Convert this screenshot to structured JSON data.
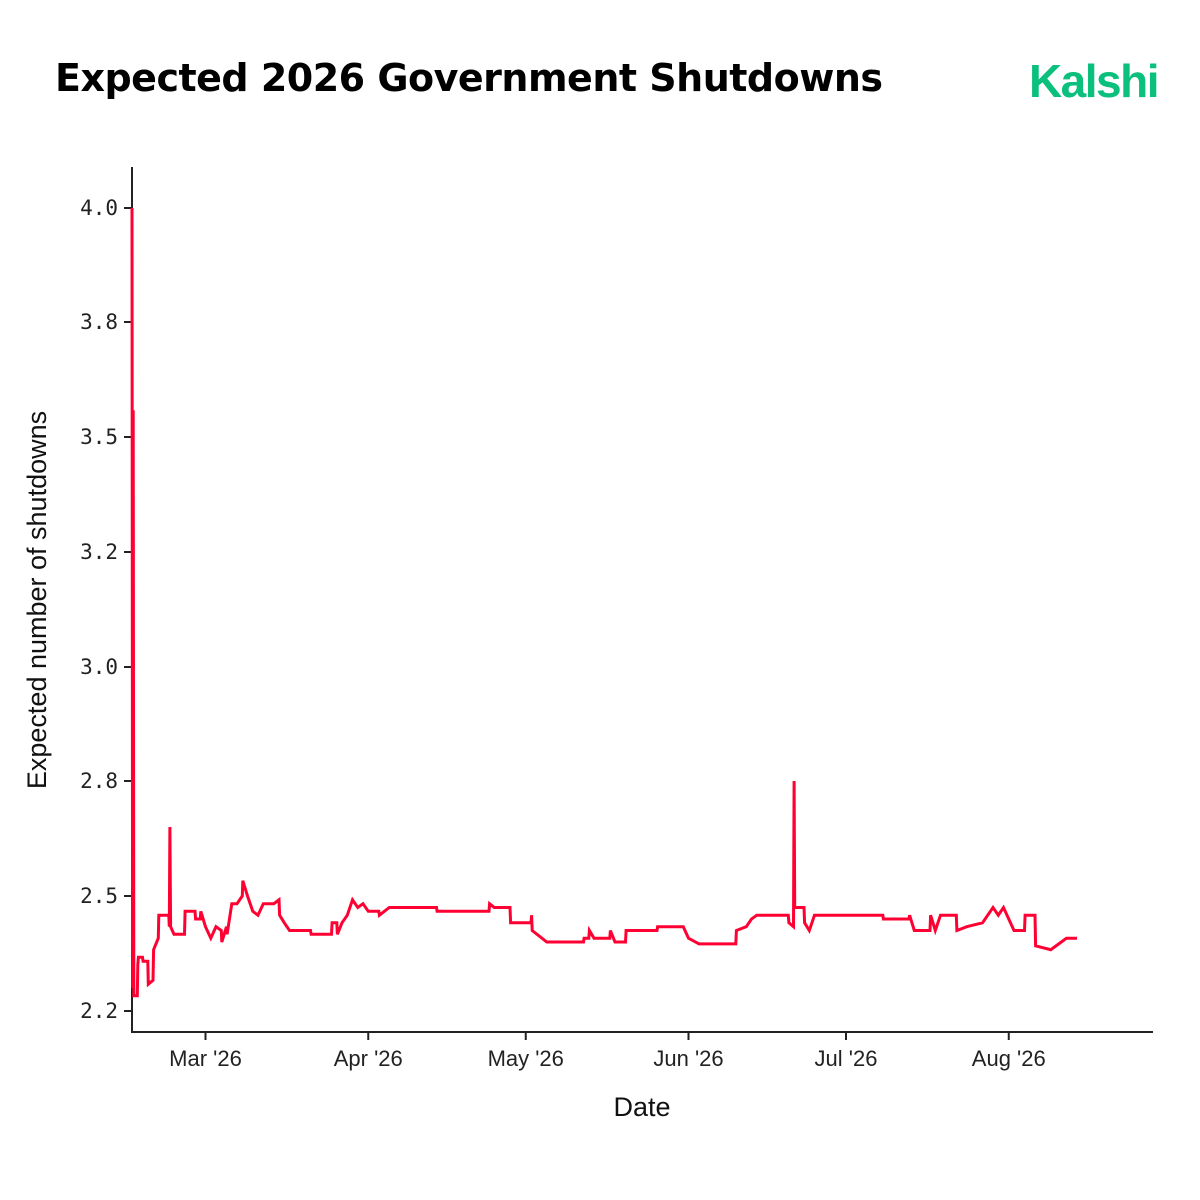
{
  "header": {
    "title": "Expected 2026 Government Shutdowns",
    "brand": "Kalshi",
    "brand_color": "#0bbf7d"
  },
  "chart_data": {
    "type": "line",
    "title": "Expected 2026 Government Shutdowns",
    "xlabel": "Date",
    "ylabel": "Expected number of shutdowns",
    "yticks": [
      "2.2",
      "2.5",
      "2.8",
      "3.0",
      "3.2",
      "3.5",
      "3.8",
      "4.0"
    ],
    "ylim": [
      2.13,
      4.07
    ],
    "xlim": [
      "2026-02-15",
      "2026-08-18"
    ],
    "xticks": [
      {
        "date": "2026-03-01",
        "label": "Mar '26"
      },
      {
        "date": "2026-04-01",
        "label": "Apr '26"
      },
      {
        "date": "2026-05-01",
        "label": "May '26"
      },
      {
        "date": "2026-06-01",
        "label": "Jun '26"
      },
      {
        "date": "2026-07-01",
        "label": "Jul '26"
      },
      {
        "date": "2026-08-01",
        "label": "Aug '26"
      }
    ],
    "grid": false,
    "legend": "none",
    "line_color": "#ff0033",
    "series": [
      {
        "points": [
          [
            "2026-02-15",
            4.0
          ],
          [
            "2026-02-15",
            2.26
          ],
          [
            "2026-02-15",
            3.57
          ],
          [
            "2026-02-15",
            2.24
          ],
          [
            "2026-02-16",
            2.24
          ],
          [
            "2026-02-16",
            2.32
          ],
          [
            "2026-02-16",
            2.34
          ],
          [
            "2026-02-17",
            2.34
          ],
          [
            "2026-02-17",
            2.33
          ],
          [
            "2026-02-18",
            2.33
          ],
          [
            "2026-02-18",
            2.27
          ],
          [
            "2026-02-19",
            2.28
          ],
          [
            "2026-02-19",
            2.36
          ],
          [
            "2026-02-20",
            2.39
          ],
          [
            "2026-02-20",
            2.45
          ],
          [
            "2026-02-22",
            2.45
          ],
          [
            "2026-02-22",
            2.42
          ],
          [
            "2026-02-22",
            2.68
          ],
          [
            "2026-02-22",
            2.42
          ],
          [
            "2026-02-23",
            2.4
          ],
          [
            "2026-02-25",
            2.4
          ],
          [
            "2026-02-25",
            2.46
          ],
          [
            "2026-02-27",
            2.46
          ],
          [
            "2026-02-27",
            2.44
          ],
          [
            "2026-02-28",
            2.44
          ],
          [
            "2026-02-28",
            2.46
          ],
          [
            "2026-03-01",
            2.42
          ],
          [
            "2026-03-02",
            2.39
          ],
          [
            "2026-03-03",
            2.42
          ],
          [
            "2026-03-04",
            2.41
          ],
          [
            "2026-03-04",
            2.38
          ],
          [
            "2026-03-05",
            2.42
          ],
          [
            "2026-03-05",
            2.4
          ],
          [
            "2026-03-06",
            2.48
          ],
          [
            "2026-03-07",
            2.48
          ],
          [
            "2026-03-08",
            2.5
          ],
          [
            "2026-03-08",
            2.54
          ],
          [
            "2026-03-09",
            2.5
          ],
          [
            "2026-03-10",
            2.46
          ],
          [
            "2026-03-11",
            2.45
          ],
          [
            "2026-03-12",
            2.48
          ],
          [
            "2026-03-14",
            2.48
          ],
          [
            "2026-03-15",
            2.49
          ],
          [
            "2026-03-15",
            2.45
          ],
          [
            "2026-03-16",
            2.43
          ],
          [
            "2026-03-17",
            2.41
          ],
          [
            "2026-03-21",
            2.41
          ],
          [
            "2026-03-21",
            2.4
          ],
          [
            "2026-03-25",
            2.4
          ],
          [
            "2026-03-25",
            2.43
          ],
          [
            "2026-03-26",
            2.43
          ],
          [
            "2026-03-26",
            2.4
          ],
          [
            "2026-03-27",
            2.43
          ],
          [
            "2026-03-28",
            2.45
          ],
          [
            "2026-03-29",
            2.49
          ],
          [
            "2026-03-30",
            2.47
          ],
          [
            "2026-03-31",
            2.48
          ],
          [
            "2026-04-01",
            2.46
          ],
          [
            "2026-04-03",
            2.46
          ],
          [
            "2026-04-03",
            2.45
          ],
          [
            "2026-04-05",
            2.47
          ],
          [
            "2026-04-14",
            2.47
          ],
          [
            "2026-04-14",
            2.46
          ],
          [
            "2026-04-24",
            2.46
          ],
          [
            "2026-04-24",
            2.48
          ],
          [
            "2026-04-25",
            2.47
          ],
          [
            "2026-04-28",
            2.47
          ],
          [
            "2026-04-28",
            2.43
          ],
          [
            "2026-05-02",
            2.43
          ],
          [
            "2026-05-02",
            2.45
          ],
          [
            "2026-05-02",
            2.41
          ],
          [
            "2026-05-05",
            2.38
          ],
          [
            "2026-05-12",
            2.38
          ],
          [
            "2026-05-12",
            2.39
          ],
          [
            "2026-05-13",
            2.39
          ],
          [
            "2026-05-13",
            2.41
          ],
          [
            "2026-05-14",
            2.39
          ],
          [
            "2026-05-17",
            2.39
          ],
          [
            "2026-05-17",
            2.41
          ],
          [
            "2026-05-18",
            2.38
          ],
          [
            "2026-05-20",
            2.38
          ],
          [
            "2026-05-20",
            2.41
          ],
          [
            "2026-05-26",
            2.41
          ],
          [
            "2026-05-26",
            2.42
          ],
          [
            "2026-05-31",
            2.42
          ],
          [
            "2026-06-01",
            2.39
          ],
          [
            "2026-06-03",
            2.375
          ],
          [
            "2026-06-10",
            2.375
          ],
          [
            "2026-06-10",
            2.41
          ],
          [
            "2026-06-12",
            2.42
          ],
          [
            "2026-06-13",
            2.44
          ],
          [
            "2026-06-14",
            2.45
          ],
          [
            "2026-06-20",
            2.45
          ],
          [
            "2026-06-20",
            2.43
          ],
          [
            "2026-06-21",
            2.42
          ],
          [
            "2026-06-21",
            2.8
          ],
          [
            "2026-06-21",
            2.47
          ],
          [
            "2026-06-23",
            2.47
          ],
          [
            "2026-06-23",
            2.43
          ],
          [
            "2026-06-24",
            2.41
          ],
          [
            "2026-06-25",
            2.45
          ],
          [
            "2026-07-08",
            2.45
          ],
          [
            "2026-07-08",
            2.44
          ],
          [
            "2026-07-13",
            2.44
          ],
          [
            "2026-07-13",
            2.45
          ],
          [
            "2026-07-14",
            2.41
          ],
          [
            "2026-07-17",
            2.41
          ],
          [
            "2026-07-17",
            2.45
          ],
          [
            "2026-07-18",
            2.41
          ],
          [
            "2026-07-19",
            2.45
          ],
          [
            "2026-07-22",
            2.45
          ],
          [
            "2026-07-22",
            2.41
          ],
          [
            "2026-07-24",
            2.42
          ],
          [
            "2026-07-27",
            2.43
          ],
          [
            "2026-07-29",
            2.47
          ],
          [
            "2026-07-30",
            2.45
          ],
          [
            "2026-07-31",
            2.47
          ],
          [
            "2026-08-02",
            2.41
          ],
          [
            "2026-08-04",
            2.41
          ],
          [
            "2026-08-04",
            2.45
          ],
          [
            "2026-08-06",
            2.45
          ],
          [
            "2026-08-06",
            2.37
          ],
          [
            "2026-08-09",
            2.36
          ],
          [
            "2026-08-11",
            2.38
          ],
          [
            "2026-08-12",
            2.39
          ],
          [
            "2026-08-14",
            2.39
          ]
        ]
      }
    ]
  }
}
